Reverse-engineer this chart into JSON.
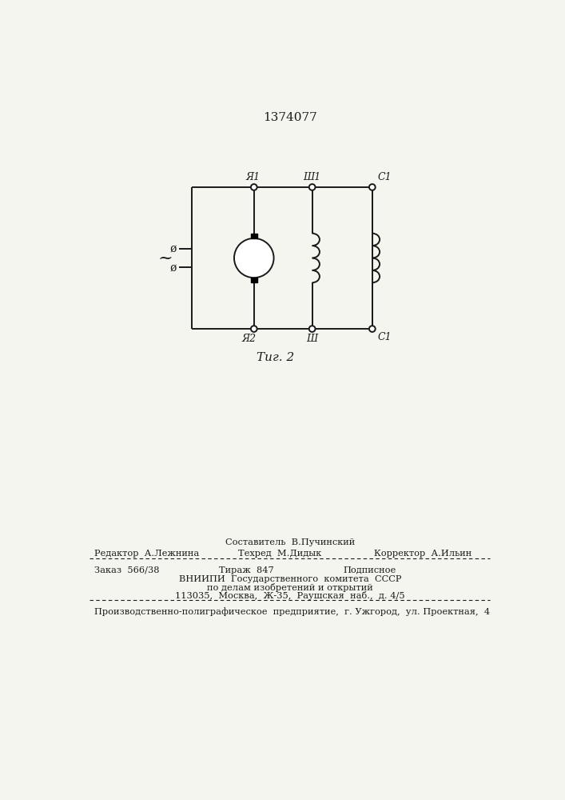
{
  "title": "1374077",
  "fig_label": "Τиг. 2",
  "background_color": "#f5f5f0",
  "line_color": "#1a1a1a",
  "label_ya1": "Я1",
  "label_sh1": "Ш1",
  "label_c1_top": "C1",
  "label_ya2": "Я2",
  "label_sh_bot": "Ш",
  "label_c1_bot": "C1",
  "tilde_symbol": "~",
  "phi_symbol": "ø",
  "bottom_text_line1": "Составитель  В.Пучинский",
  "bottom_text_line2_left": "Редактор  А.Лежнина",
  "bottom_text_line2_mid": "Техред  М.Дидык",
  "bottom_text_line2_right": "Корректор  А.Ильин",
  "bottom_text_line3_left": "Заказ  566/38",
  "bottom_text_line3_mid": "Тираж  847",
  "bottom_text_line3_right": "Подписное",
  "bottom_text_line4": "ВНИИПИ  Государственного  комитета  СССР",
  "bottom_text_line5": "по делам изобретений и открытий",
  "bottom_text_line6": "113035,  Москва,  Ж-35,  Раушская  наб.,  д. 4/5",
  "bottom_text_last": "Производственно-полиграфическое  предприятие,  г. Ужгород,  ул. Проектная,  4"
}
